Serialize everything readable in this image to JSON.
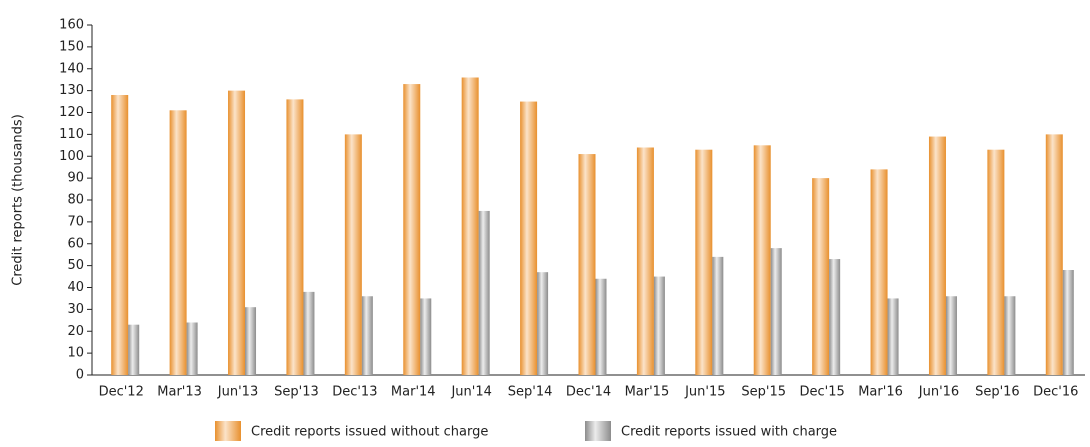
{
  "chart_data": {
    "type": "bar",
    "y_label": "Credit reports (thousands)",
    "categories": [
      "Dec'12",
      "Mar'13",
      "Jun'13",
      "Sep'13",
      "Dec'13",
      "Mar'14",
      "Jun'14",
      "Sep'14",
      "Dec'14",
      "Mar'15",
      "Jun'15",
      "Sep'15",
      "Dec'15",
      "Mar'16",
      "Jun'16",
      "Sep'16",
      "Dec'16"
    ],
    "series": [
      {
        "name": "Credit reports issued without charge",
        "color": "#e8902e",
        "values": [
          128,
          121,
          130,
          126,
          110,
          133,
          136,
          125,
          101,
          104,
          103,
          105,
          90,
          94,
          109,
          103,
          110
        ]
      },
      {
        "name": "Credit reports issued with charge",
        "color": "#8c8c8c",
        "values": [
          23,
          24,
          31,
          38,
          36,
          35,
          75,
          47,
          44,
          45,
          54,
          58,
          53,
          35,
          36,
          36,
          48
        ]
      }
    ],
    "ylim": [
      0,
      160
    ],
    "yticks": [
      0,
      10,
      20,
      30,
      40,
      50,
      60,
      70,
      80,
      90,
      100,
      110,
      120,
      130,
      140,
      150,
      160
    ],
    "grid": false
  }
}
